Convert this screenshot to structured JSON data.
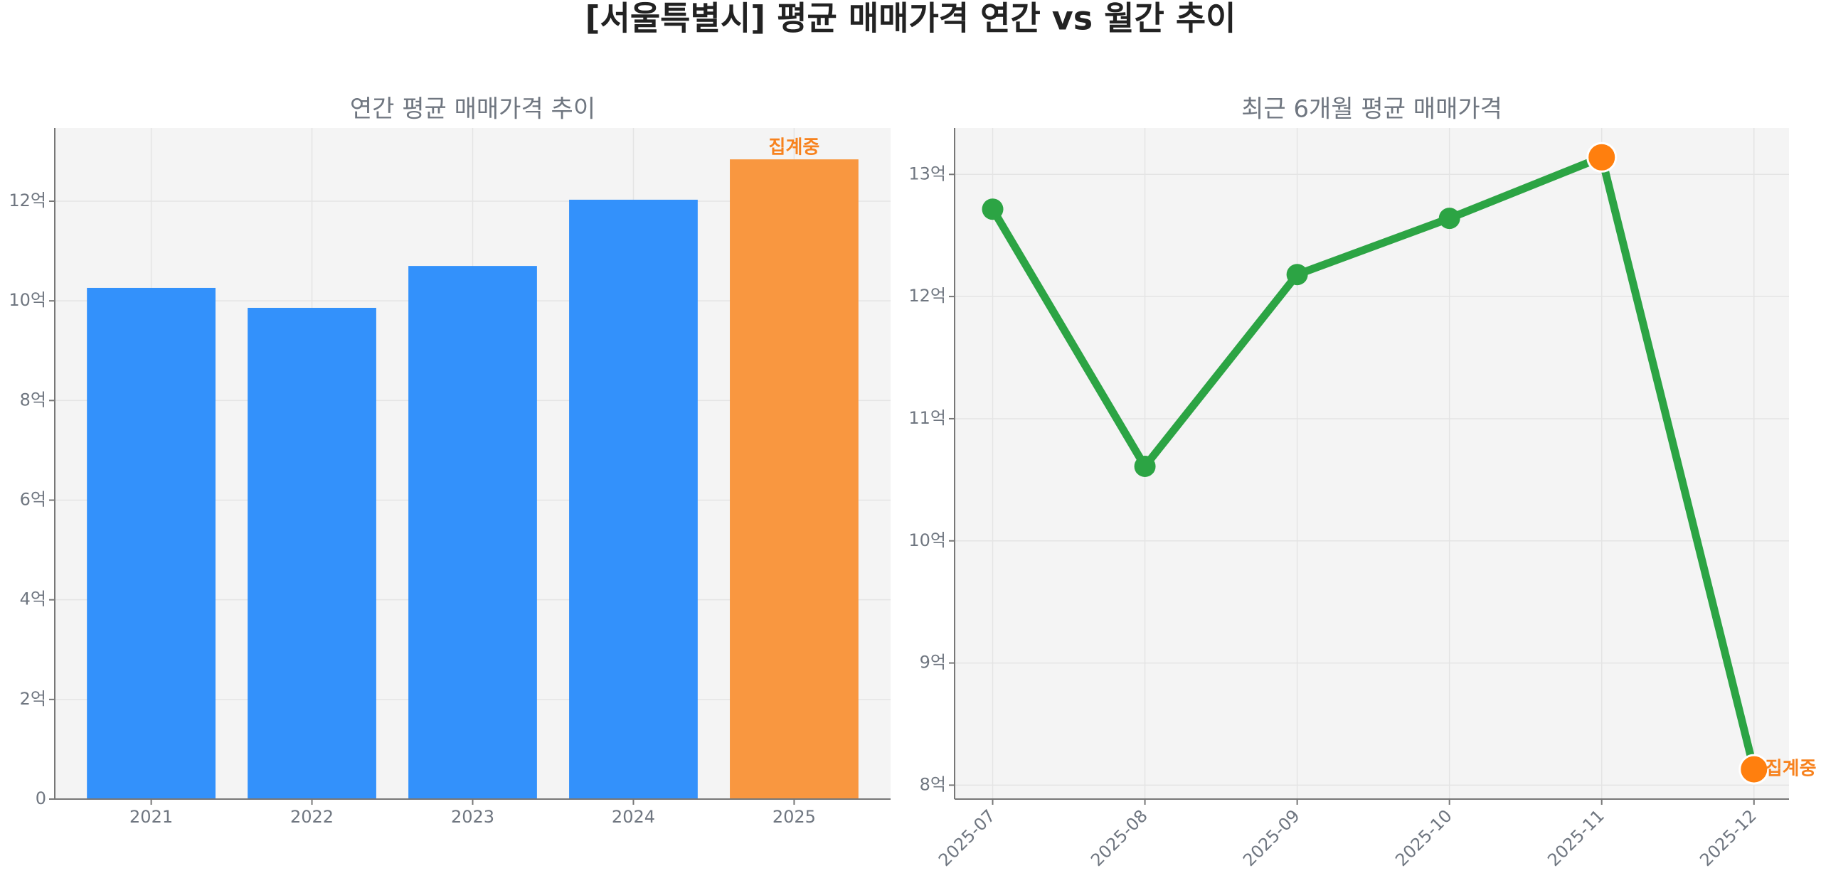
{
  "title": "[서울특별시] 평균 매매가격 연간 vs 월간 추이",
  "chart_data": [
    {
      "type": "bar",
      "title": "연간 평균 매매가격 추이",
      "categories": [
        "2021",
        "2022",
        "2023",
        "2024",
        "2025"
      ],
      "values": [
        10.26,
        9.86,
        10.7,
        12.03,
        12.84
      ],
      "colors": [
        "#3391fb",
        "#3391fb",
        "#3391fb",
        "#3391fb",
        "#f99740"
      ],
      "annotations": [
        {
          "text": "집계중",
          "category": "2025",
          "color": "#f7821e"
        }
      ],
      "ylim": [
        0,
        13.47
      ],
      "yticks": [
        0,
        {
          "value": 2,
          "label": "2억"
        },
        {
          "value": 4,
          "label": "4억"
        },
        {
          "value": 6,
          "label": "6억"
        },
        {
          "value": 8,
          "label": "8억"
        },
        {
          "value": 10,
          "label": "10억"
        },
        {
          "value": 12,
          "label": "12억"
        }
      ],
      "grid": true
    },
    {
      "type": "line",
      "title": "최근 6개월 평균 매매가격",
      "categories": [
        "2025-07",
        "2025-08",
        "2025-09",
        "2025-10",
        "2025-11",
        "2025-12"
      ],
      "values": [
        12.715,
        10.61,
        12.18,
        12.64,
        13.14,
        8.13
      ],
      "color": "#2ca444",
      "marker_colors": [
        "#2ca444",
        "#2ca444",
        "#2ca444",
        "#2ca444",
        "#ff7f0e",
        "#ff7f0e"
      ],
      "annotations": [
        {
          "text": "집계중",
          "category": "2025-12",
          "color": "#f7821e"
        }
      ],
      "ylim": [
        7.886,
        13.38
      ],
      "yticks": [
        {
          "value": 8,
          "label": "8억"
        },
        {
          "value": 9,
          "label": "9억"
        },
        {
          "value": 10,
          "label": "10억"
        },
        {
          "value": 11,
          "label": "11억"
        },
        {
          "value": 12,
          "label": "12억"
        },
        {
          "value": 13,
          "label": "13억"
        }
      ],
      "grid": true
    }
  ]
}
